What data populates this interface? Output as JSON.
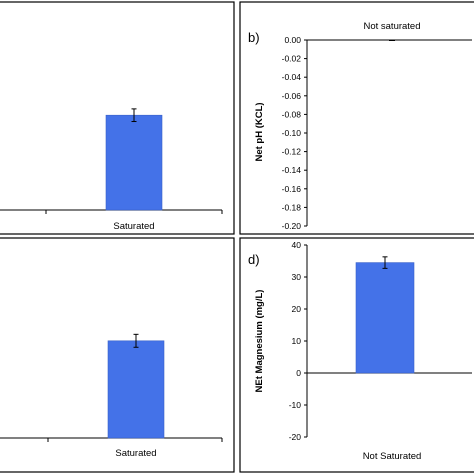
{
  "colors": {
    "bar": "#4472E8",
    "bar_stroke": "#3A62C8",
    "axis": "#000000"
  },
  "chart_data": [
    {
      "id": "a",
      "type": "bar",
      "categories": [
        "Saturated"
      ],
      "series": [
        {
          "values": [
            0.6
          ],
          "errors": [
            0.04
          ]
        }
      ],
      "ylim": [
        0,
        1
      ],
      "ylabel": "",
      "panel_label": "",
      "yticks_visible": false
    },
    {
      "id": "b",
      "type": "bar",
      "categories": [
        "Not saturated"
      ],
      "series": [
        {
          "values": [
            0.0
          ],
          "errors": [
            0.0
          ]
        }
      ],
      "ylim": [
        -0.2,
        0.0
      ],
      "yticks": [
        0.0,
        -0.02,
        -0.04,
        -0.06,
        -0.08,
        -0.1,
        -0.12,
        -0.14,
        -0.16,
        -0.18,
        -0.2
      ],
      "ytick_labels": [
        "0.00",
        "-0.02",
        "-0.04",
        "-0.06",
        "-0.08",
        "-0.10",
        "-0.12",
        "-0.14",
        "-0.16",
        "-0.18",
        "-0.20"
      ],
      "ylabel": "Net pH (KCL)",
      "panel_label": "b)",
      "category_position": "top"
    },
    {
      "id": "c",
      "type": "bar",
      "categories": [
        "Saturated"
      ],
      "series": [
        {
          "values": [
            0.6
          ],
          "errors": [
            0.04
          ]
        }
      ],
      "ylim": [
        0,
        1
      ],
      "ylabel": "",
      "panel_label": "",
      "yticks_visible": false
    },
    {
      "id": "d",
      "type": "bar",
      "categories": [
        "Not Saturated"
      ],
      "series": [
        {
          "values": [
            34.5
          ],
          "errors": [
            1.8
          ]
        }
      ],
      "ylim": [
        -20,
        40
      ],
      "yticks": [
        40,
        30,
        20,
        10,
        0,
        -10,
        -20
      ],
      "ytick_labels": [
        "40",
        "30",
        "20",
        "10",
        "0",
        "-10",
        "-20"
      ],
      "ylabel": "NEt Magnesium (mg/L)",
      "panel_label": "d)",
      "category_position": "bottom"
    }
  ]
}
